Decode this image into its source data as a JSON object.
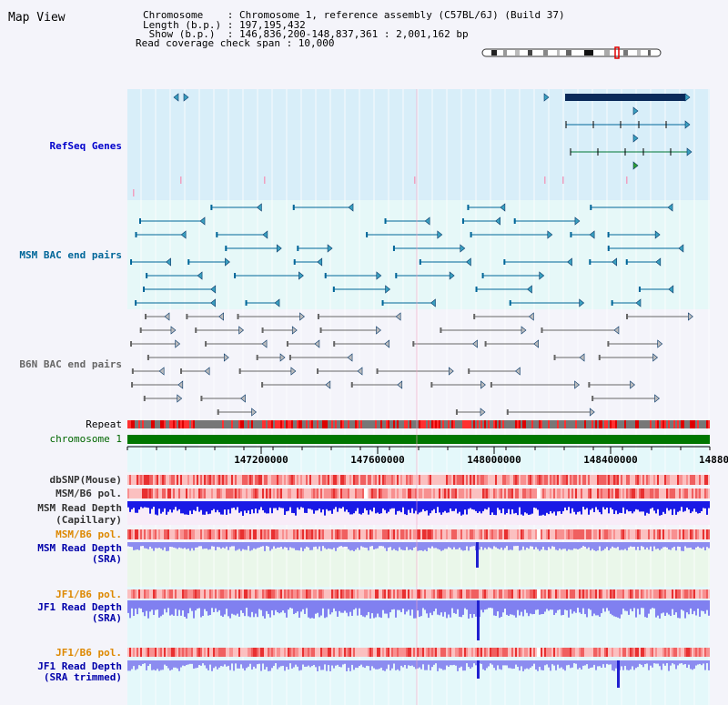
{
  "header": {
    "view_title": "Map View",
    "info_lines": [
      "Chromosome    : Chromosome 1, reference assembly (C57BL/6J) (Build 37)",
      "Length (b.p.) : 197,195,432",
      " Show (b.p.)  : 146,836,200-148,837,361 : 2,001,162 bp",
      "Read coverage check span : 10,000"
    ]
  },
  "tracks": {
    "refseq": {
      "label": "RefSeq Genes",
      "color": "#0000cc"
    },
    "msm_bac": {
      "label": "MSM BAC end pairs",
      "color": "#006699"
    },
    "b6n_bac": {
      "label": "B6N BAC end pairs",
      "color": "#666666"
    },
    "repeat": {
      "label": "Repeat",
      "color": "#000000"
    },
    "chromosome": {
      "label": "chromosome 1",
      "color": "#006600"
    },
    "dbsnp": {
      "label": "dbSNP(Mouse)",
      "color": "#333333"
    },
    "msm_b6_pol_1": {
      "label": "MSM/B6 pol.",
      "color": "#333333"
    },
    "msm_depth_cap": {
      "label": "MSM Read Depth",
      "sublabel": "(Capillary)",
      "color": "#333333"
    },
    "msm_b6_pol_2": {
      "label": "MSM/B6 pol.",
      "color": "#dd8800"
    },
    "msm_depth_sra": {
      "label": "MSM Read Depth",
      "sublabel": "(SRA)",
      "color": "#0000aa"
    },
    "jf1_b6_pol_1": {
      "label": "JF1/B6 pol.",
      "color": "#dd8800"
    },
    "jf1_depth_sra": {
      "label": "JF1 Read Depth",
      "sublabel": "(SRA)",
      "color": "#0000aa"
    },
    "jf1_b6_pol_2": {
      "label": "JF1/B6 pol.",
      "color": "#dd8800"
    },
    "jf1_depth_trim": {
      "label": "JF1 Read Depth",
      "sublabel": "(SRA trimmed)",
      "color": "#0000aa"
    }
  },
  "axis": {
    "ticks": [
      "147200000",
      "147600000",
      "148000000",
      "148400000",
      "14880"
    ]
  },
  "colors": {
    "refseq_bg": "#d8eef9",
    "msm_bg": "#e6f8f8",
    "b6n_bg": "#f4f4fa",
    "sra_bg": "#eaf7ea",
    "jf1_bg": "#e4f8fa",
    "gene_dark": "#0a2a5a",
    "depth_capillary": "#1a1ae6",
    "depth_sra": "#8c8cf0",
    "chromosome_bar": "#007700"
  }
}
